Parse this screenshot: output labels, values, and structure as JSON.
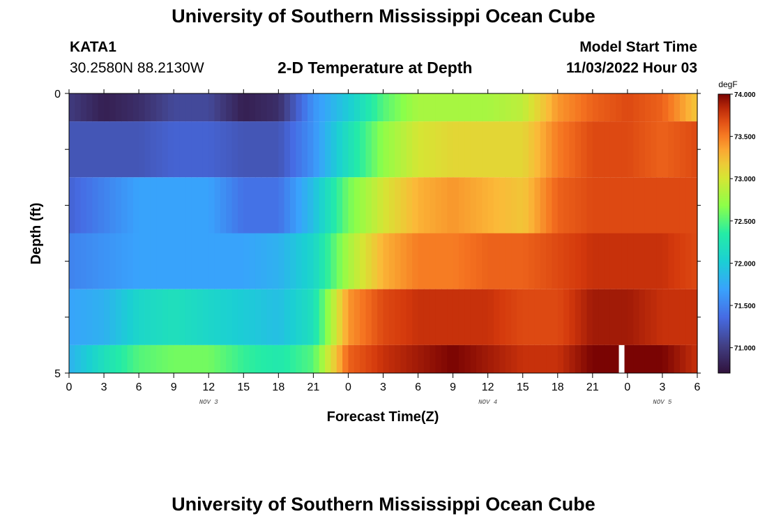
{
  "header": {
    "title": "University of Southern Mississippi Ocean Cube",
    "station_id": "KATA1",
    "coords": "30.2580N  88.2130W",
    "subtitle": "2-D Temperature at Depth",
    "model_start_label": "Model Start Time",
    "model_start_time": "11/03/2022 Hour 03"
  },
  "footer": {
    "title": "University of Southern Mississippi Ocean Cube"
  },
  "chart_data": {
    "type": "heatmap",
    "title": "2-D Temperature at Depth",
    "xlabel": "Forecast Time(Z)",
    "ylabel": "Depth (ft)",
    "units": "degF",
    "x_hours_since_nov3_00z": [
      0,
      54
    ],
    "y_range": [
      0,
      5
    ],
    "x_tick_labels": [
      "0",
      "3",
      "6",
      "9",
      "12",
      "15",
      "18",
      "21",
      "0",
      "3",
      "6",
      "9",
      "12",
      "15",
      "18",
      "21",
      "0",
      "3",
      "6"
    ],
    "y_tick_labels": [
      "0",
      "5"
    ],
    "day_labels": [
      {
        "text": "NOV 3",
        "hour": 12
      },
      {
        "text": "NOV 4",
        "hour": 36
      },
      {
        "text": "NOV 5",
        "hour": 51
      }
    ],
    "colorbar": {
      "min": 70.7,
      "max": 74.0,
      "ticks": [
        "71.000",
        "71.500",
        "72.000",
        "72.500",
        "73.000",
        "73.500",
        "74.000"
      ]
    },
    "depth_bands": [
      {
        "depth_ft": 0,
        "x_hours": [
          0,
          3,
          6,
          9,
          12,
          15,
          18,
          21,
          24,
          27,
          30,
          33,
          36,
          39,
          42,
          45,
          48,
          51,
          54
        ],
        "temps_degF": [
          71.0,
          70.8,
          70.9,
          71.1,
          71.1,
          70.8,
          70.9,
          71.6,
          72.0,
          72.5,
          72.8,
          72.8,
          72.8,
          72.9,
          73.4,
          73.6,
          73.7,
          73.6,
          73.2
        ]
      },
      {
        "depth_ft": 1,
        "x_hours": [
          0,
          3,
          6,
          9,
          12,
          15,
          18,
          21,
          24,
          27,
          30,
          33,
          36,
          39,
          42,
          45,
          48,
          51,
          54
        ],
        "temps_degF": [
          71.2,
          71.2,
          71.2,
          71.3,
          71.3,
          71.2,
          71.2,
          71.6,
          72.2,
          72.7,
          73.0,
          73.1,
          73.1,
          73.1,
          73.5,
          73.7,
          73.7,
          73.6,
          73.7
        ]
      },
      {
        "depth_ft": 2,
        "x_hours": [
          0,
          3,
          6,
          9,
          12,
          15,
          18,
          21,
          24,
          27,
          30,
          33,
          36,
          39,
          42,
          45,
          48,
          51,
          54
        ],
        "temps_degF": [
          71.3,
          71.5,
          71.7,
          71.7,
          71.7,
          71.4,
          71.4,
          71.9,
          72.6,
          73.0,
          73.3,
          73.4,
          73.3,
          73.2,
          73.6,
          73.7,
          73.7,
          73.7,
          73.7
        ]
      },
      {
        "depth_ft": 3,
        "x_hours": [
          0,
          3,
          6,
          9,
          12,
          15,
          18,
          21,
          24,
          27,
          30,
          33,
          36,
          39,
          42,
          45,
          48,
          51,
          54
        ],
        "temps_degF": [
          71.5,
          71.6,
          71.7,
          71.7,
          71.7,
          71.7,
          71.8,
          72.1,
          72.8,
          73.3,
          73.5,
          73.5,
          73.6,
          73.6,
          73.7,
          73.8,
          73.8,
          73.8,
          73.7
        ]
      },
      {
        "depth_ft": 4,
        "x_hours": [
          0,
          3,
          6,
          9,
          12,
          15,
          18,
          21,
          24,
          27,
          30,
          33,
          36,
          39,
          42,
          45,
          48,
          51,
          54
        ],
        "temps_degF": [
          71.7,
          71.8,
          72.1,
          72.2,
          72.1,
          72.0,
          71.9,
          72.2,
          73.4,
          73.7,
          73.8,
          73.8,
          73.8,
          73.7,
          73.7,
          73.9,
          73.9,
          73.8,
          73.8
        ]
      },
      {
        "depth_ft": 5,
        "x_hours": [
          0,
          3,
          6,
          9,
          12,
          15,
          18,
          21,
          24,
          27,
          30,
          33,
          36,
          39,
          42,
          45,
          48,
          51,
          54
        ],
        "temps_degF": [
          71.8,
          72.2,
          72.5,
          72.6,
          72.6,
          72.4,
          72.3,
          72.5,
          73.6,
          73.8,
          73.9,
          74.0,
          73.9,
          73.8,
          73.8,
          74.0,
          74.1,
          74.0,
          73.8
        ]
      }
    ],
    "missing_value_hour": 47.5
  }
}
